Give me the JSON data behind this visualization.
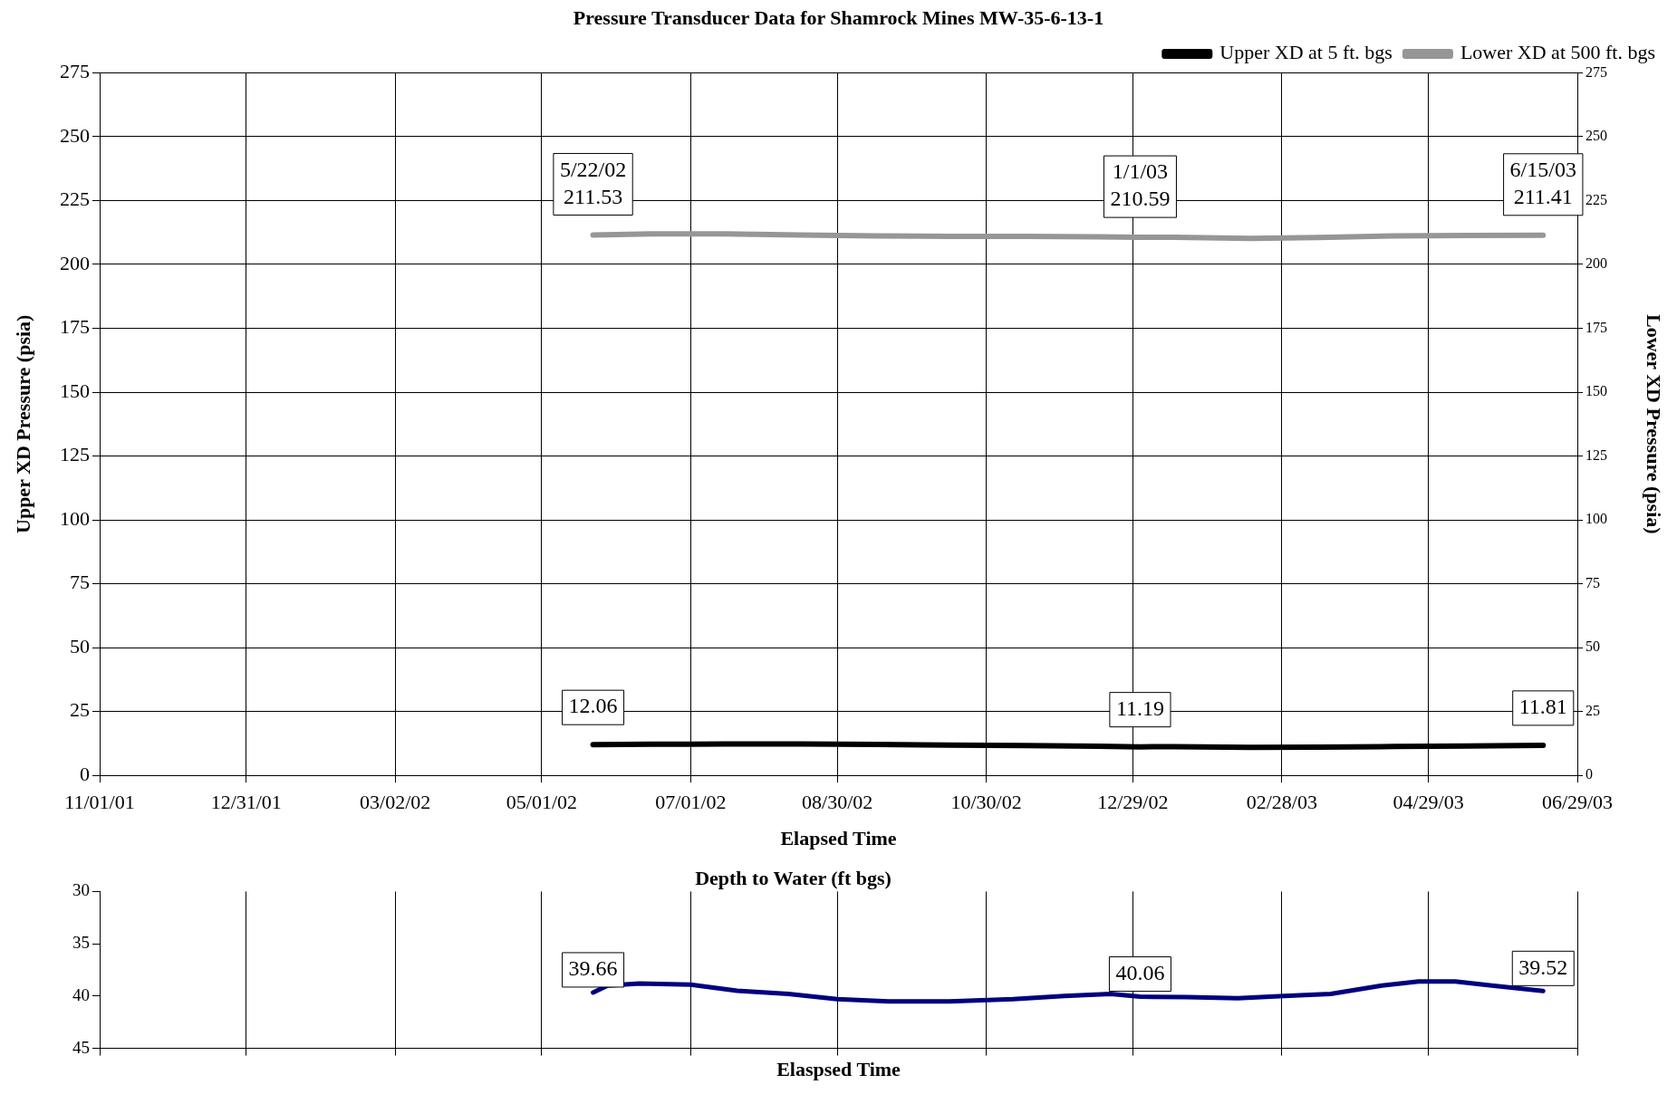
{
  "chart_data": [
    {
      "type": "line",
      "title": "Pressure Transducer Data for Shamrock Mines MW-35-6-13-1",
      "xlabel": "Elapsed Time",
      "ylabel": "Upper XD Pressure (psia)",
      "y2label": "Lower XD Pressure (psia)",
      "legend": "top right",
      "grid": true,
      "x": [
        "2002-05-22",
        "2002-06-15",
        "2002-07-15",
        "2002-08-15",
        "2002-09-15",
        "2002-10-15",
        "2002-11-15",
        "2002-12-15",
        "2003-01-01",
        "2003-01-15",
        "2003-02-15",
        "2003-03-15",
        "2003-04-15",
        "2003-05-15",
        "2003-06-15"
      ],
      "xlim": [
        "2001-11-01",
        "2003-06-29"
      ],
      "xticks": [
        {
          "value": "2001-11-01",
          "label": "11/01/01"
        },
        {
          "value": "2001-12-31",
          "label": "12/31/01"
        },
        {
          "value": "2002-03-02",
          "label": "03/02/02"
        },
        {
          "value": "2002-05-01",
          "label": "05/01/02"
        },
        {
          "value": "2002-07-01",
          "label": "07/01/02"
        },
        {
          "value": "2002-08-30",
          "label": "08/30/02"
        },
        {
          "value": "2002-10-30",
          "label": "10/30/02"
        },
        {
          "value": "2002-12-29",
          "label": "12/29/02"
        },
        {
          "value": "2003-02-28",
          "label": "02/28/03"
        },
        {
          "value": "2003-04-29",
          "label": "04/29/03"
        },
        {
          "value": "2003-06-29",
          "label": "06/29/03"
        }
      ],
      "ylim": [
        0,
        275
      ],
      "yticks": [
        0,
        25,
        50,
        75,
        100,
        125,
        150,
        175,
        200,
        225,
        250,
        275
      ],
      "y2lim": [
        0,
        275
      ],
      "y2ticks": [
        0,
        25,
        50,
        75,
        100,
        125,
        150,
        175,
        200,
        225,
        250,
        275
      ],
      "series": [
        {
          "name": "Upper XD at 5 ft. bgs",
          "color": "#000000",
          "values": [
            12.06,
            12.2,
            12.3,
            12.3,
            12.1,
            11.9,
            11.7,
            11.4,
            11.19,
            11.2,
            11.0,
            11.1,
            11.3,
            11.5,
            11.81
          ]
        },
        {
          "name": "Lower XD at 500 ft. bgs",
          "color": "#969696",
          "axis": "y2",
          "values": [
            211.53,
            212,
            212,
            211.5,
            211.2,
            211,
            211,
            210.8,
            210.59,
            210.6,
            210.2,
            210.5,
            211.2,
            211.3,
            211.41
          ]
        }
      ],
      "annotations": [
        {
          "text": "5/22/02\n211.53",
          "x": "2002-05-22",
          "y": 211.53
        },
        {
          "text": "1/1/03\n210.59",
          "x": "2003-01-01",
          "y": 210.59
        },
        {
          "text": "6/15/03\n211.41",
          "x": "2003-06-15",
          "y": 211.41
        },
        {
          "text": "12.06",
          "x": "2002-05-22",
          "y": 12.06
        },
        {
          "text": "11.19",
          "x": "2003-01-01",
          "y": 11.19
        },
        {
          "text": "11.81",
          "x": "2003-06-15",
          "y": 11.81
        }
      ]
    },
    {
      "type": "line",
      "title": "Depth to Water (ft bgs)",
      "xlabel": "Elaspsed Time",
      "grid": "x",
      "tick_labels": "y",
      "x": [
        "2002-05-22",
        "2002-05-28",
        "2002-06-10",
        "2002-07-01",
        "2002-07-20",
        "2002-08-10",
        "2002-08-30",
        "2002-09-20",
        "2002-10-15",
        "2002-11-10",
        "2002-12-01",
        "2002-12-20",
        "2003-01-01",
        "2003-01-20",
        "2003-02-10",
        "2003-03-01",
        "2003-03-20",
        "2003-04-10",
        "2003-04-25",
        "2003-05-10",
        "2003-05-25",
        "2003-06-15"
      ],
      "xlim": [
        "2001-11-01",
        "2003-06-29"
      ],
      "xticks": [
        {
          "value": "2001-11-01",
          "label": null
        },
        {
          "value": "2001-12-31",
          "label": null
        },
        {
          "value": "2002-03-02",
          "label": null
        },
        {
          "value": "2002-05-01",
          "label": null
        },
        {
          "value": "2002-07-01",
          "label": null
        },
        {
          "value": "2002-08-30",
          "label": null
        },
        {
          "value": "2002-10-30",
          "label": null
        },
        {
          "value": "2002-12-29",
          "label": null
        },
        {
          "value": "2003-02-28",
          "label": null
        },
        {
          "value": "2003-04-29",
          "label": null
        },
        {
          "value": "2003-06-29",
          "label": null
        }
      ],
      "ylim": [
        45,
        30
      ],
      "yticks": [
        30,
        35,
        40,
        45
      ],
      "series": [
        {
          "color": "#00007f",
          "values": [
            39.66,
            39.0,
            38.8,
            38.9,
            39.5,
            39.8,
            40.3,
            40.5,
            40.5,
            40.3,
            40.0,
            39.8,
            40.06,
            40.1,
            40.2,
            40.0,
            39.8,
            39.0,
            38.6,
            38.6,
            39.0,
            39.52
          ]
        }
      ],
      "annotations": [
        {
          "text": "39.66",
          "x": "2002-05-22",
          "y": 39.66
        },
        {
          "text": "40.06",
          "x": "2003-01-01",
          "y": 40.06
        },
        {
          "text": "39.52",
          "x": "2003-06-15",
          "y": 39.52
        }
      ]
    }
  ]
}
